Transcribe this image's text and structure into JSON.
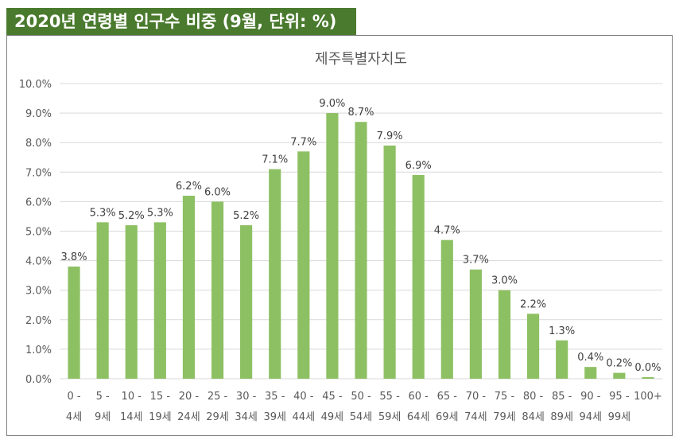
{
  "header": {
    "title": "2020년 연령별 인구수 비중 (9월, 단위: %)"
  },
  "colors": {
    "header_bg": "#4a7a2e",
    "bar": "#8dc063",
    "grid": "#d9d9d9"
  },
  "chart_data": {
    "type": "bar",
    "title": "제주특별자치도",
    "xlabel": "",
    "ylabel": "",
    "ylim": [
      0,
      10
    ],
    "ytick_step": 1,
    "y_tick_labels": [
      "0.0%",
      "1.0%",
      "2.0%",
      "3.0%",
      "4.0%",
      "5.0%",
      "6.0%",
      "7.0%",
      "8.0%",
      "9.0%",
      "10.0%"
    ],
    "grid": true,
    "legend": "none",
    "categories": [
      [
        "0 -",
        "4세"
      ],
      [
        "5 -",
        "9세"
      ],
      [
        "10 -",
        "14세"
      ],
      [
        "15 -",
        "19세"
      ],
      [
        "20 -",
        "24세"
      ],
      [
        "25 -",
        "29세"
      ],
      [
        "30 -",
        "34세"
      ],
      [
        "35 -",
        "39세"
      ],
      [
        "40 -",
        "44세"
      ],
      [
        "45 -",
        "49세"
      ],
      [
        "50 -",
        "54세"
      ],
      [
        "55 -",
        "59세"
      ],
      [
        "60 -",
        "64세"
      ],
      [
        "65 -",
        "69세"
      ],
      [
        "70 -",
        "74세"
      ],
      [
        "75 -",
        "79세"
      ],
      [
        "80 -",
        "84세"
      ],
      [
        "85 -",
        "89세"
      ],
      [
        "90 -",
        "94세"
      ],
      [
        "95 -",
        "99세"
      ],
      [
        "100+",
        ""
      ]
    ],
    "values": [
      3.8,
      5.3,
      5.2,
      5.3,
      6.2,
      6.0,
      5.2,
      7.1,
      7.7,
      9.0,
      8.7,
      7.9,
      6.9,
      4.7,
      3.7,
      3.0,
      2.2,
      1.3,
      0.4,
      0.2,
      0.0
    ],
    "data_labels": [
      "3.8%",
      "5.3%",
      "5.2%",
      "5.3%",
      "6.2%",
      "6.0%",
      "5.2%",
      "7.1%",
      "7.7%",
      "9.0%",
      "8.7%",
      "7.9%",
      "6.9%",
      "4.7%",
      "3.7%",
      "3.0%",
      "2.2%",
      "1.3%",
      "0.4%",
      "0.2%",
      "0.0%"
    ]
  }
}
